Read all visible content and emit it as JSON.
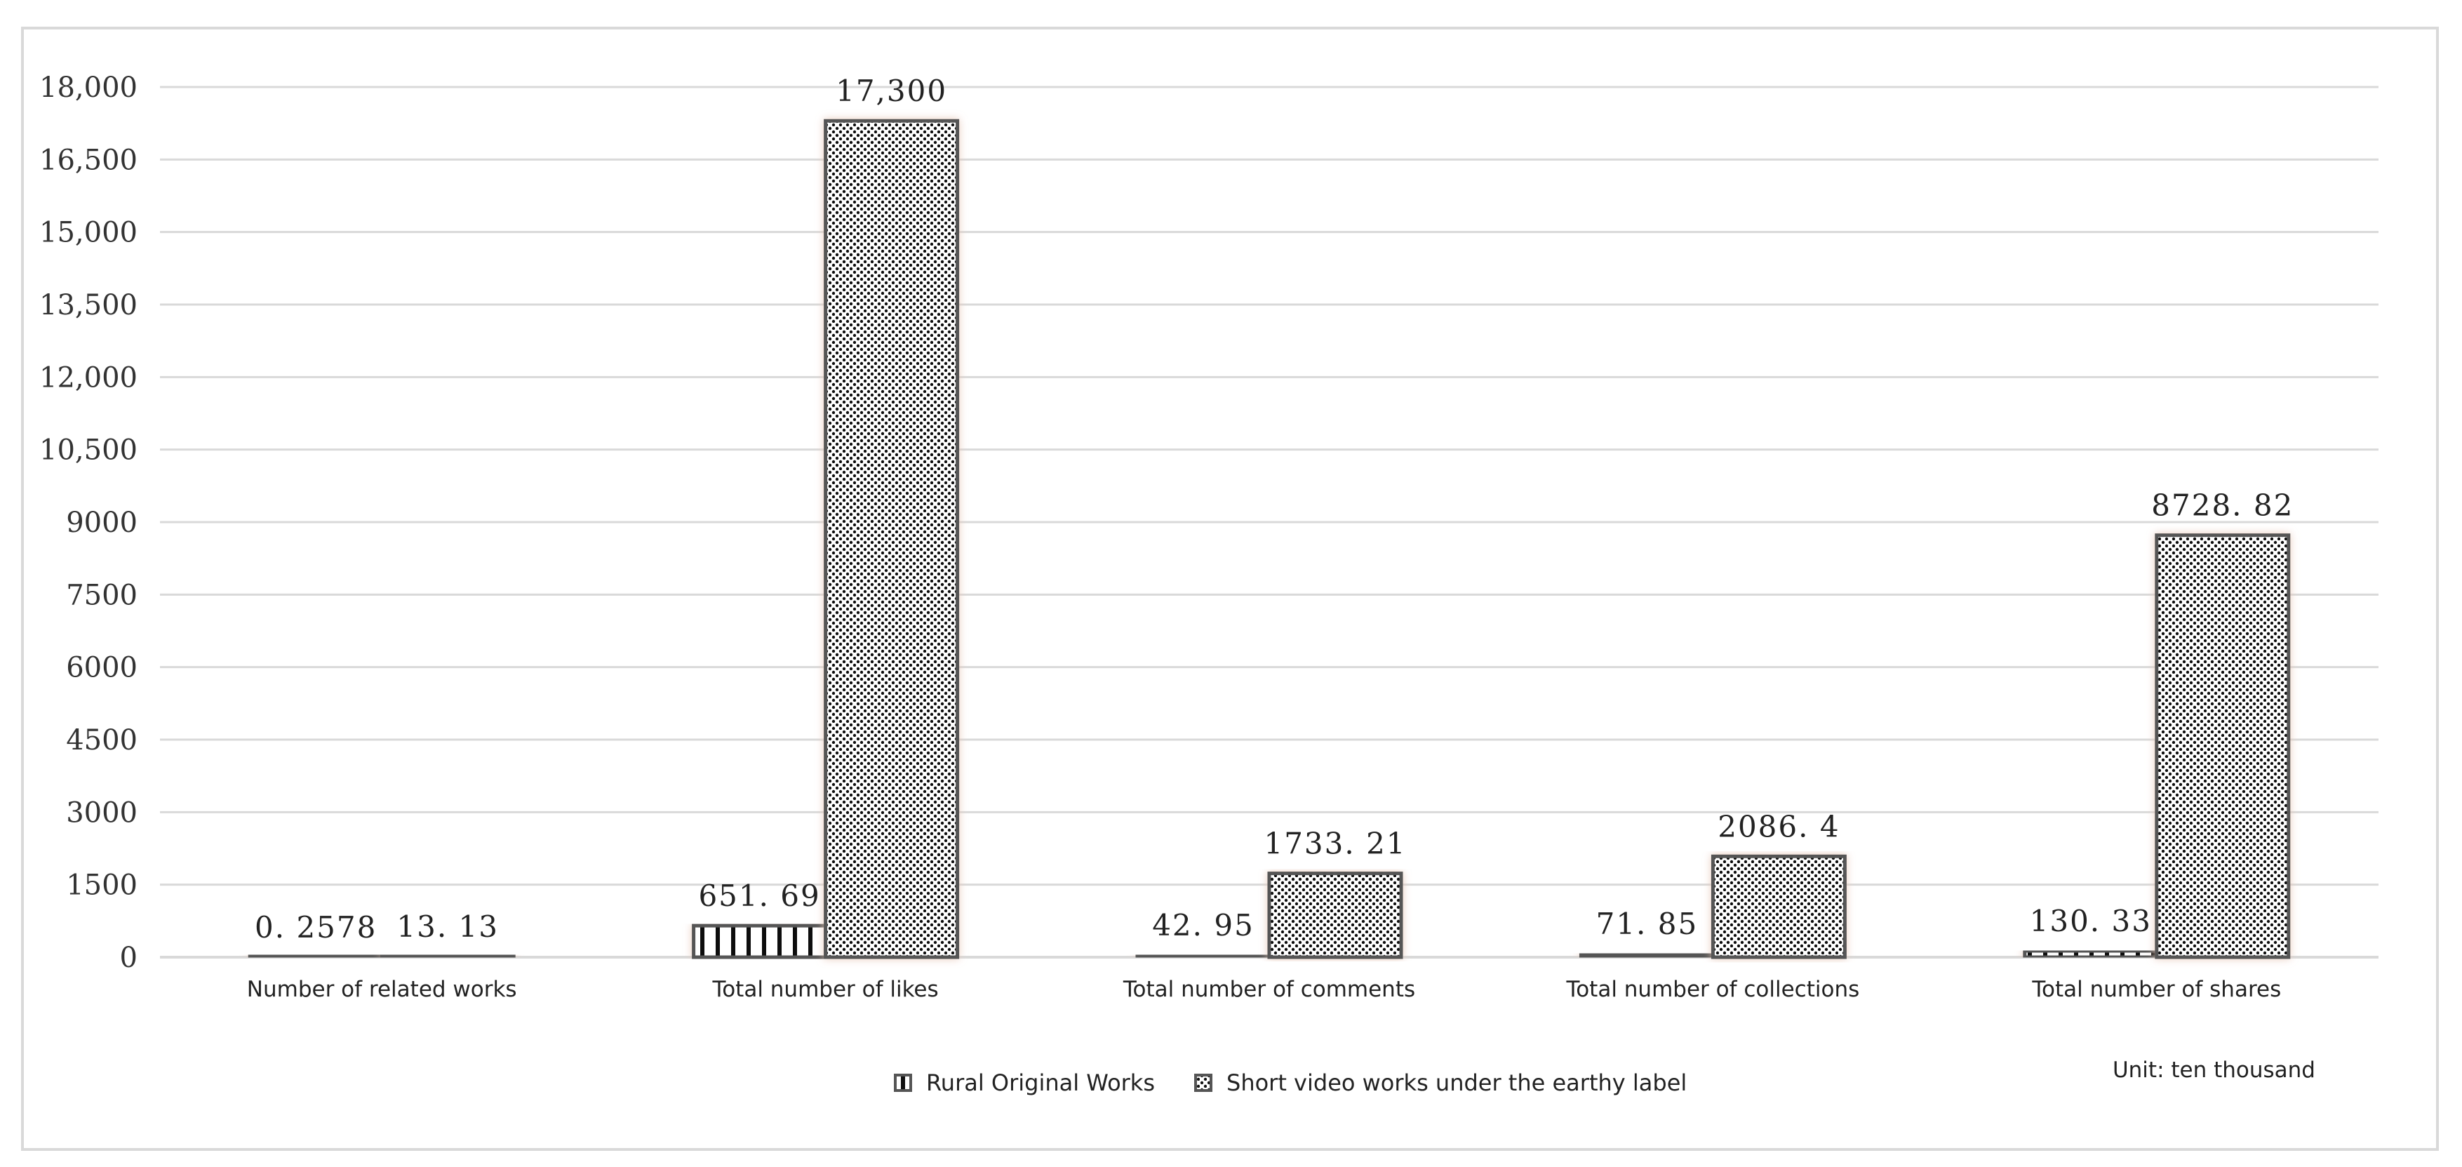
{
  "chart_data": {
    "type": "bar",
    "categories": [
      "Number of related works",
      "Total number of likes",
      "Total number of comments",
      "Total number of collections",
      "Total number of shares"
    ],
    "series": [
      {
        "name": "Rural Original Works",
        "values": [
          0.2578,
          651.69,
          42.95,
          71.85,
          130.33
        ],
        "labels": [
          "0. 2578",
          "651. 69",
          "42. 95",
          "71. 85",
          "130. 33"
        ],
        "pattern": "vertical-stripes"
      },
      {
        "name": "Short video works under the earthy label",
        "values": [
          13.13,
          17300,
          1733.21,
          2086.4,
          8728.82
        ],
        "labels": [
          "13. 13",
          "17,300",
          "1733. 21",
          "2086. 4",
          "8728. 82"
        ],
        "pattern": "dots"
      }
    ],
    "y_tick_labels": [
      "0",
      "1500",
      "3000",
      "4500",
      "6000",
      "7500",
      "9000",
      "10,500",
      "12,000",
      "13,500",
      "15,000",
      "16,500",
      "18,000"
    ],
    "ylim": [
      0,
      18000
    ],
    "unit_note": "Unit: ten thousand",
    "grid": true,
    "legend_position": "bottom",
    "colors": {
      "bar_border": "#555555",
      "pattern": "#111111",
      "grid": "#d9d9d9",
      "shadow": "#e8c8b8"
    }
  }
}
